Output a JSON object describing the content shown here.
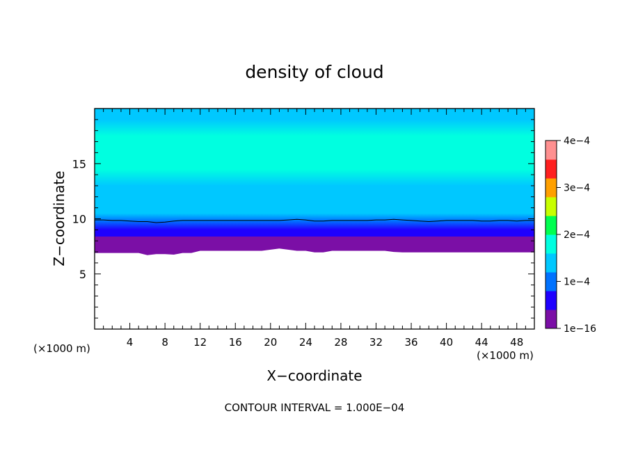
{
  "chart_data": {
    "type": "heatmap",
    "title": "density of cloud",
    "xlabel": "X−coordinate",
    "ylabel": "Z−coordinate",
    "x_unit": "(×1000 m)",
    "y_unit": "(×1000 m)",
    "xlim": [
      0,
      50
    ],
    "ylim": [
      0,
      20
    ],
    "x_ticks": [
      "4",
      "8",
      "12",
      "16",
      "20",
      "24",
      "28",
      "32",
      "36",
      "40",
      "44",
      "48"
    ],
    "y_ticks": [
      "5",
      "10",
      "15"
    ],
    "footer": "CONTOUR INTERVAL = 1.000E−04",
    "colorbar": {
      "min": 0,
      "max": 0.0004,
      "tick_labels": [
        "1e−16",
        "1e−4",
        "2e−4",
        "3e−4",
        "4e−4"
      ],
      "colors": [
        "#7b0fa6",
        "#1f00ff",
        "#0072ff",
        "#00c8ff",
        "#00ffe0",
        "#00ff50",
        "#c8ff00",
        "#ffa000",
        "#ff2020",
        "#ff9090"
      ]
    },
    "cloud_base_z": [
      6.9,
      6.9,
      6.9,
      6.9,
      6.9,
      6.9,
      6.7,
      6.8,
      6.8,
      6.75,
      6.9,
      6.9,
      7.1,
      7.1,
      7.1,
      7.1,
      7.1,
      7.1,
      7.1,
      7.1,
      7.2,
      7.3,
      7.2,
      7.1,
      7.1,
      6.95,
      6.95,
      7.1,
      7.1,
      7.1,
      7.1,
      7.1,
      7.1,
      7.1,
      7.0,
      6.95,
      6.95,
      6.95,
      6.95,
      6.95,
      6.95,
      6.95,
      6.95,
      6.95,
      6.95,
      6.95,
      6.95,
      6.95,
      6.95,
      6.95,
      6.95
    ],
    "contour_1e4_z": [
      9.9,
      9.9,
      9.85,
      9.85,
      9.8,
      9.75,
      9.75,
      9.65,
      9.7,
      9.8,
      9.85,
      9.85,
      9.85,
      9.85,
      9.85,
      9.85,
      9.85,
      9.85,
      9.85,
      9.85,
      9.85,
      9.85,
      9.9,
      9.95,
      9.9,
      9.8,
      9.8,
      9.85,
      9.85,
      9.85,
      9.85,
      9.85,
      9.9,
      9.9,
      9.95,
      9.9,
      9.85,
      9.8,
      9.75,
      9.8,
      9.85,
      9.85,
      9.85,
      9.85,
      9.8,
      9.8,
      9.85,
      9.85,
      9.8,
      9.85,
      9.85
    ],
    "density_profile": [
      {
        "z": 7.0,
        "value": 1e-05
      },
      {
        "z": 7.6,
        "value": 3e-05
      },
      {
        "z": 8.2,
        "value": 5e-05
      },
      {
        "z": 9.0,
        "value": 7e-05
      },
      {
        "z": 9.8,
        "value": 0.0001
      },
      {
        "z": 10.5,
        "value": 0.00012
      },
      {
        "z": 11.5,
        "value": 0.000135
      },
      {
        "z": 13.0,
        "value": 0.000155
      },
      {
        "z": 14.5,
        "value": 0.00018
      },
      {
        "z": 16.0,
        "value": 0.00018
      },
      {
        "z": 17.5,
        "value": 0.00016
      },
      {
        "z": 19.0,
        "value": 0.00015
      },
      {
        "z": 20.0,
        "value": 0.000145
      }
    ]
  }
}
